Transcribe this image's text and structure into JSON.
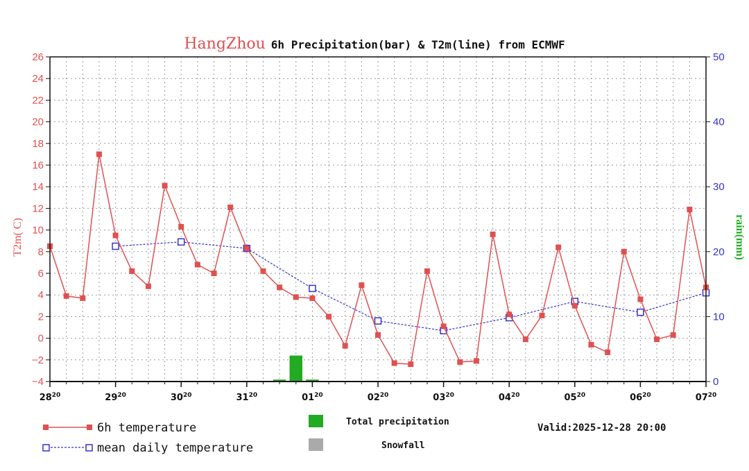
{
  "colors": {
    "temp": "#e05050",
    "mean": "#3333cc",
    "precip": "#22aa22",
    "snow": "#aaaaaa",
    "grid": "#999999",
    "axis": "#111111"
  },
  "chart_data": {
    "type": "line",
    "title_city": "HangZhou",
    "title_rest": "6h Precipitation(bar) & T2m(line) from ECMWF",
    "ylabel_left": "T2m( C)",
    "ylabel_right": "rain(mm)",
    "ylim_left": [
      -4,
      26
    ],
    "yticks_left": [
      -4,
      -2,
      0,
      2,
      4,
      6,
      8,
      10,
      12,
      14,
      16,
      18,
      20,
      22,
      24,
      26
    ],
    "ylim_right": [
      0,
      50
    ],
    "yticks_right": [
      0,
      10,
      20,
      30,
      40,
      50
    ],
    "xlim": [
      0,
      40
    ],
    "x_ticks": [
      {
        "x": 0,
        "day": "28",
        "hour": "20"
      },
      {
        "x": 4,
        "day": "29",
        "hour": "20"
      },
      {
        "x": 8,
        "day": "30",
        "hour": "20"
      },
      {
        "x": 12,
        "day": "31",
        "hour": "20"
      },
      {
        "x": 16,
        "day": "01",
        "hour": "20"
      },
      {
        "x": 20,
        "day": "02",
        "hour": "20"
      },
      {
        "x": 24,
        "day": "03",
        "hour": "20"
      },
      {
        "x": 28,
        "day": "04",
        "hour": "20"
      },
      {
        "x": 32,
        "day": "05",
        "hour": "20"
      },
      {
        "x": 36,
        "day": "06",
        "hour": "20"
      },
      {
        "x": 40,
        "day": "07",
        "hour": "20"
      }
    ],
    "grid": true,
    "series": [
      {
        "name": "6h temperature",
        "marker": "filled-square",
        "x": [
          0,
          1,
          2,
          3,
          4,
          5,
          6,
          7,
          8,
          9,
          10,
          11,
          12,
          13,
          14,
          15,
          16,
          17,
          18,
          19,
          20,
          21,
          22,
          23,
          24,
          25,
          26,
          27,
          28,
          29,
          30,
          31,
          32,
          33,
          34,
          35,
          36,
          37,
          38,
          39,
          40
        ],
        "values": [
          8.5,
          3.9,
          3.7,
          17.0,
          9.5,
          6.2,
          4.8,
          14.1,
          10.3,
          6.8,
          6.0,
          12.1,
          8.3,
          6.2,
          4.7,
          3.8,
          3.7,
          2.0,
          -0.7,
          4.9,
          0.3,
          -2.3,
          -2.4,
          6.2,
          1.1,
          -2.2,
          -2.1,
          9.6,
          2.2,
          -0.1,
          2.1,
          8.4,
          3.0,
          -0.6,
          -1.3,
          8.0,
          3.6,
          -0.1,
          0.3,
          11.9,
          4.7
        ]
      },
      {
        "name": "mean daily temperature",
        "marker": "open-square",
        "x": [
          4,
          8,
          12,
          16,
          20,
          24,
          28,
          32,
          36,
          40
        ],
        "values": [
          8.5,
          8.9,
          8.3,
          4.6,
          1.6,
          0.7,
          1.9,
          3.4,
          2.4,
          4.2
        ]
      }
    ],
    "bars": [
      {
        "name": "Total precipitation",
        "x": 14,
        "value": 0.3
      },
      {
        "name": "Total precipitation",
        "x": 15,
        "value": 4.0
      },
      {
        "name": "Total precipitation",
        "x": 16,
        "value": 0.3
      }
    ],
    "legend": {
      "temp": "6h temperature",
      "mean": "mean daily temperature",
      "precip": "Total precipitation",
      "snow": "Snowfall"
    },
    "valid": "Valid:2025-12-28 20:00"
  }
}
